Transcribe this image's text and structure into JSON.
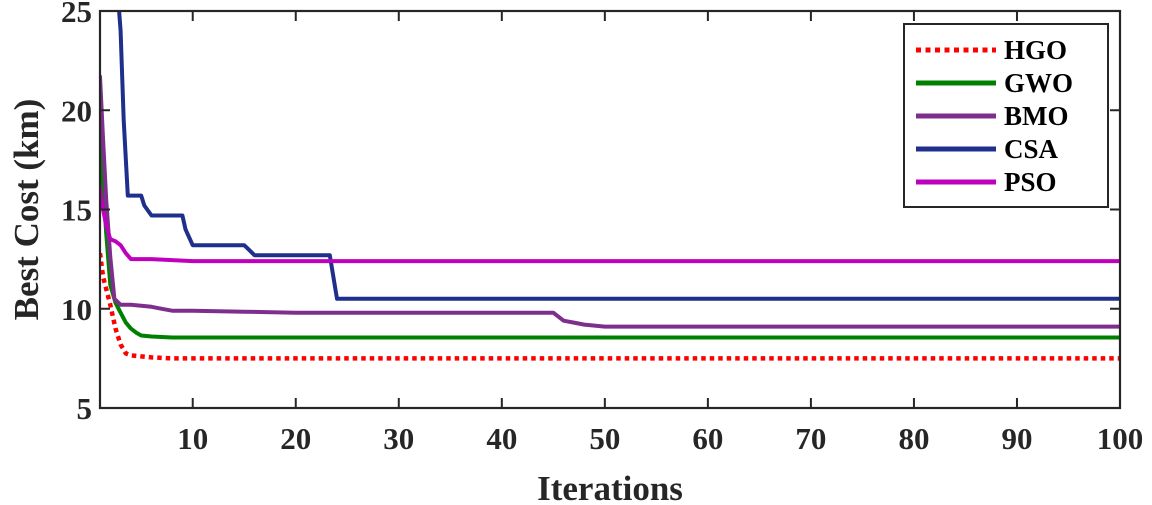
{
  "chart_data": {
    "type": "line",
    "title": "",
    "xlabel": "Iterations",
    "ylabel": "Best Cost (km)",
    "xlim": [
      1,
      100
    ],
    "ylim": [
      5,
      25
    ],
    "xticks": [
      10,
      20,
      30,
      40,
      50,
      60,
      70,
      80,
      90,
      100
    ],
    "yticks": [
      5,
      10,
      15,
      20,
      25
    ],
    "grid": false,
    "legend_position": "top-right",
    "series": [
      {
        "name": "HGO",
        "color": "#ff0000",
        "style": "dotted",
        "x": [
          1,
          1.3,
          1.6,
          2,
          2.5,
          3,
          3.5,
          4,
          5,
          6,
          8,
          10,
          20,
          50,
          100
        ],
        "y": [
          12.8,
          11.6,
          11.0,
          10.2,
          9.0,
          8.2,
          7.75,
          7.65,
          7.6,
          7.55,
          7.5,
          7.5,
          7.5,
          7.5,
          7.5
        ]
      },
      {
        "name": "GWO",
        "color": "#008000",
        "style": "solid",
        "x": [
          1,
          1.3,
          1.6,
          2,
          2.5,
          3,
          3.5,
          4,
          4.5,
          5,
          6,
          8,
          10,
          30,
          60,
          100
        ],
        "y": [
          19.0,
          16.2,
          13.8,
          11.2,
          10.3,
          9.8,
          9.3,
          9.0,
          8.8,
          8.65,
          8.6,
          8.55,
          8.55,
          8.55,
          8.55,
          8.55
        ]
      },
      {
        "name": "BMO",
        "color": "#7e2f8e",
        "style": "solid",
        "x": [
          1,
          1.3,
          1.6,
          2,
          2.4,
          3,
          4,
          5,
          6,
          7,
          8,
          10,
          15,
          20,
          30,
          40,
          45,
          46,
          47,
          48,
          50,
          55,
          60,
          80,
          100
        ],
        "y": [
          21.7,
          18.5,
          15.5,
          12.6,
          10.5,
          10.2,
          10.2,
          10.15,
          10.1,
          10.0,
          9.9,
          9.9,
          9.85,
          9.8,
          9.8,
          9.8,
          9.8,
          9.4,
          9.3,
          9.2,
          9.1,
          9.1,
          9.1,
          9.1,
          9.1
        ]
      },
      {
        "name": "CSA",
        "color": "#1f2f8c",
        "style": "solid",
        "x": [
          2.8,
          3,
          3.3,
          3.7,
          4,
          5,
          5.3,
          6,
          9,
          9.3,
          10,
          15,
          15.4,
          16,
          23,
          23.3,
          24,
          100
        ],
        "y": [
          25.4,
          24.0,
          19.5,
          15.7,
          15.7,
          15.7,
          15.2,
          14.7,
          14.7,
          14.0,
          13.2,
          13.2,
          13.0,
          12.7,
          12.7,
          12.7,
          10.5,
          10.5
        ]
      },
      {
        "name": "PSO",
        "color": "#bf00bf",
        "style": "solid",
        "x": [
          1,
          1.3,
          1.6,
          2,
          2.5,
          3,
          3.5,
          4,
          6,
          10,
          20,
          50,
          100
        ],
        "y": [
          16.1,
          15.0,
          14.2,
          13.5,
          13.4,
          13.2,
          12.8,
          12.5,
          12.5,
          12.4,
          12.4,
          12.4,
          12.4
        ]
      }
    ]
  }
}
